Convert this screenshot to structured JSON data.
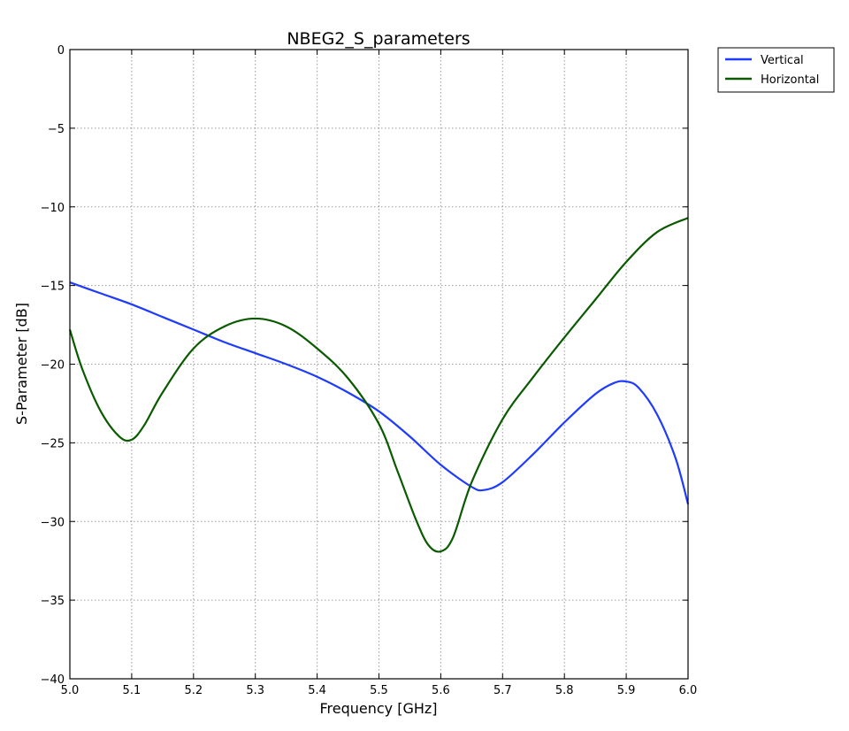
{
  "chart_data": {
    "type": "line",
    "title": "NBEG2_S_parameters",
    "xlabel": "Frequency [GHz]",
    "ylabel": "S-Parameter [dB]",
    "xlim": [
      5.0,
      6.0
    ],
    "ylim": [
      -40,
      0
    ],
    "x_ticks": [
      "5.0",
      "5.1",
      "5.2",
      "5.3",
      "5.4",
      "5.5",
      "5.6",
      "5.7",
      "5.8",
      "5.9",
      "6.0"
    ],
    "y_ticks": [
      "0",
      "−5",
      "−10",
      "−15",
      "−20",
      "−25",
      "−30",
      "−35",
      "−40"
    ],
    "grid": true,
    "legend_position": "outside-top-right",
    "series": [
      {
        "name": "Vertical",
        "color": "#1f3bff",
        "x": [
          5.0,
          5.05,
          5.1,
          5.15,
          5.2,
          5.25,
          5.3,
          5.35,
          5.4,
          5.45,
          5.5,
          5.55,
          5.6,
          5.65,
          5.67,
          5.7,
          5.75,
          5.8,
          5.85,
          5.88,
          5.9,
          5.92,
          5.95,
          5.98,
          6.0
        ],
        "y": [
          -14.8,
          -15.5,
          -16.2,
          -17.0,
          -17.8,
          -18.6,
          -19.3,
          -20.0,
          -20.8,
          -21.8,
          -23.0,
          -24.6,
          -26.4,
          -27.8,
          -28.0,
          -27.5,
          -25.7,
          -23.7,
          -21.9,
          -21.2,
          -21.1,
          -21.5,
          -23.2,
          -26.0,
          -28.9
        ]
      },
      {
        "name": "Horizontal",
        "color": "#0a5a00",
        "x": [
          5.0,
          5.02,
          5.05,
          5.08,
          5.1,
          5.12,
          5.15,
          5.2,
          5.25,
          5.3,
          5.35,
          5.4,
          5.45,
          5.5,
          5.53,
          5.56,
          5.58,
          5.6,
          5.62,
          5.65,
          5.7,
          5.75,
          5.8,
          5.85,
          5.9,
          5.95,
          6.0
        ],
        "y": [
          -17.8,
          -20.3,
          -23.0,
          -24.6,
          -24.8,
          -23.9,
          -21.8,
          -19.0,
          -17.6,
          -17.1,
          -17.6,
          -19.0,
          -20.9,
          -23.8,
          -26.8,
          -29.9,
          -31.5,
          -31.9,
          -31.0,
          -27.5,
          -23.5,
          -20.8,
          -18.3,
          -15.9,
          -13.5,
          -11.6,
          -10.7
        ]
      }
    ]
  }
}
